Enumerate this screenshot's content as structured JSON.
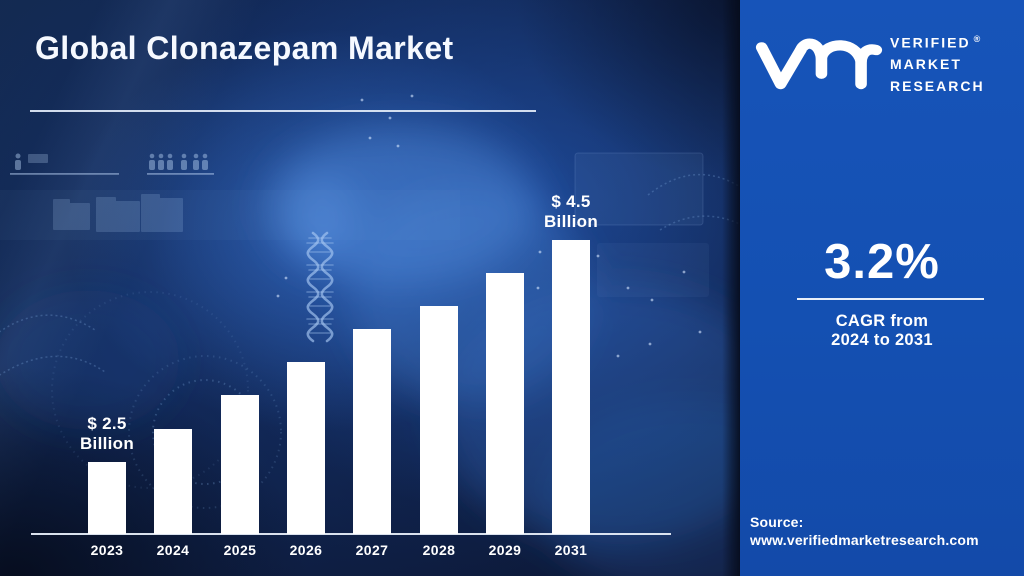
{
  "title": "Global Clonazepam Market",
  "brand": {
    "name_lines": [
      "VERIFIED",
      "MARKET",
      "RESEARCH"
    ],
    "registered_mark": "®",
    "monogram": "vmr-monogram"
  },
  "panel": {
    "cagr_value": "3.2%",
    "cagr_caption_line1": "CAGR from",
    "cagr_caption_line2": "2024 to 2031",
    "source_label": "Source:",
    "source_url": "www.verifiedmarketresearch.com"
  },
  "chart_data": {
    "type": "bar",
    "title": "Global Clonazepam Market",
    "unit": "USD Billion",
    "categories": [
      "2023",
      "2024",
      "2025",
      "2026",
      "2027",
      "2028",
      "2029",
      "2031"
    ],
    "values": [
      2.5,
      2.8,
      3.1,
      3.4,
      3.7,
      3.9,
      4.2,
      4.5
    ],
    "value_labels": [
      {
        "category": "2023",
        "line1": "$ 2.5",
        "line2": "Billion"
      },
      {
        "category": "2031",
        "line1": "$ 4.5",
        "line2": "Billion"
      }
    ],
    "bar_color": "#ffffff",
    "axis_line": true,
    "gridlines": false,
    "legend": null
  },
  "colors": {
    "panel_blue": "#1551b5",
    "background_navy": "#0b1733",
    "accent_glow_blue": "#2a69cf",
    "text_white": "#ffffff"
  },
  "decor_motifs": [
    "gloved-hand-holding-dna-strand",
    "dna-helix",
    "folder-shapes",
    "people-row-icons",
    "dotted-swirl",
    "particle-dots"
  ]
}
